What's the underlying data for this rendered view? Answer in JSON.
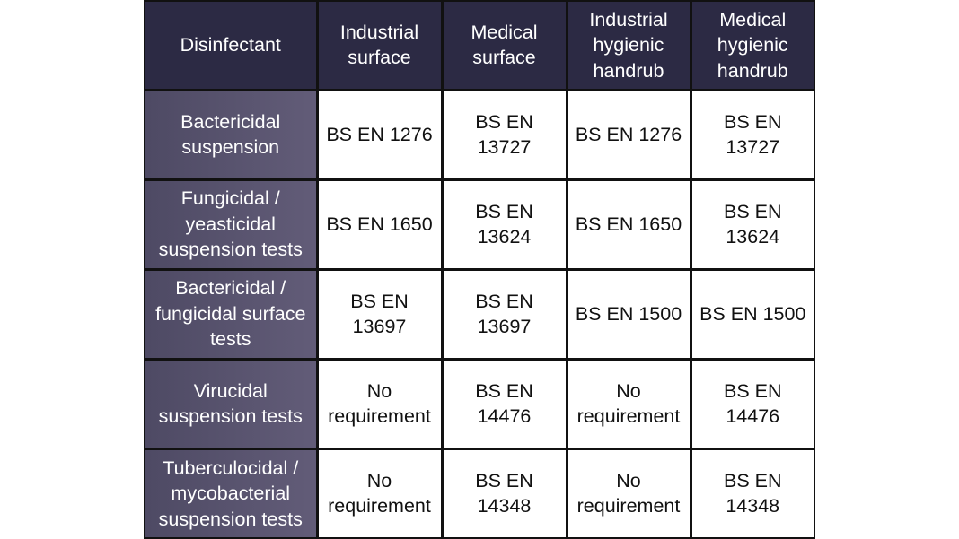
{
  "table": {
    "header": [
      [
        "Disinfectant"
      ],
      [
        "Industrial",
        "surface"
      ],
      [
        "Medical",
        "surface"
      ],
      [
        "Industrial",
        "hygienic",
        "handrub"
      ],
      [
        "Medical",
        "hygienic",
        "handrub"
      ]
    ],
    "rows": [
      [
        [
          "Bactericidal",
          "suspension"
        ],
        [
          "BS EN 1276"
        ],
        [
          "BS EN",
          "13727"
        ],
        [
          "BS EN 1276"
        ],
        [
          "BS EN",
          "13727"
        ]
      ],
      [
        [
          "Fungicidal /",
          "yeasticidal",
          "suspension tests"
        ],
        [
          "BS EN 1650"
        ],
        [
          "BS EN",
          "13624"
        ],
        [
          "BS EN 1650"
        ],
        [
          "BS EN",
          "13624"
        ]
      ],
      [
        [
          "Bactericidal /",
          "fungicidal surface",
          "tests"
        ],
        [
          "BS EN",
          "13697"
        ],
        [
          "BS EN",
          "13697"
        ],
        [
          "BS EN 1500"
        ],
        [
          "BS EN 1500"
        ]
      ],
      [
        [
          "Virucidal",
          "suspension tests"
        ],
        [
          "No",
          "requirement"
        ],
        [
          "BS EN",
          "14476"
        ],
        [
          "No",
          "requirement"
        ],
        [
          "BS EN",
          "14476"
        ]
      ],
      [
        [
          "Tuberculocidal /",
          "mycobacterial",
          "suspension tests"
        ],
        [
          "No",
          "requirement"
        ],
        [
          "BS EN",
          "14348"
        ],
        [
          "No",
          "requirement"
        ],
        [
          "BS EN",
          "14348"
        ]
      ]
    ]
  }
}
